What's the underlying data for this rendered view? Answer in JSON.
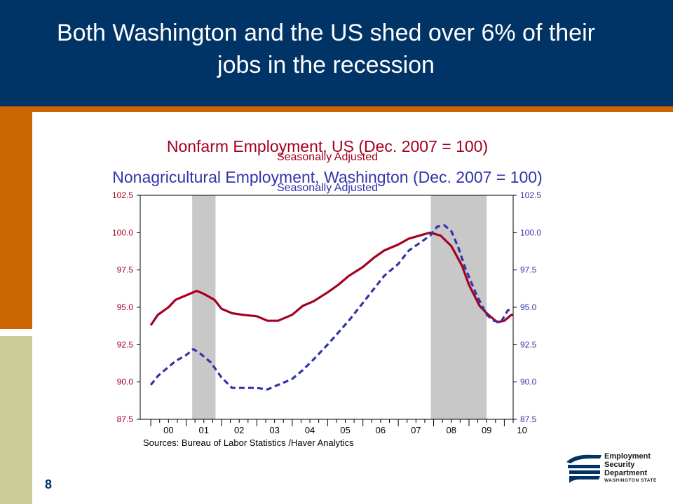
{
  "slide": {
    "title_line1": "Both Washington and the US shed over 6% of their",
    "title_line2": "jobs in the recession",
    "page_number": "8"
  },
  "colors": {
    "header_bg": "#003366",
    "orange": "#cc6600",
    "khaki": "#cccc99",
    "us_series": "#a50021",
    "wa_series": "#3333aa",
    "recession_shade": "#c8c8c8"
  },
  "logo": {
    "line1": "Employment",
    "line2": "Security",
    "line3": "Department",
    "line4": "WASHINGTON STATE"
  },
  "chart_data": {
    "type": "line",
    "title_us": "Nonfarm Employment, US (Dec. 2007 = 100)",
    "subtitle_us": "Seasonally Adjusted",
    "title_wa": "Nonagricultural Employment, Washington (Dec. 2007 = 100)",
    "subtitle_wa": "Seasonally Adjusted",
    "source": "Sources:  Bureau of Labor Statistics /Haver Analytics",
    "x_range": [
      1999.7,
      2010.25
    ],
    "ylim": [
      87.5,
      102.5
    ],
    "y_ticks_left": [
      "102.5",
      "100.0",
      "97.5",
      "95.0",
      "92.5",
      "90.0",
      "87.5"
    ],
    "y_ticks_right": [
      "102.5",
      "100.0",
      "97.5",
      "95.0",
      "92.5",
      "90.0",
      "87.5"
    ],
    "x_tick_labels": [
      "00",
      "01",
      "02",
      "03",
      "04",
      "05",
      "06",
      "07",
      "08",
      "09",
      "10"
    ],
    "recessions": [
      [
        2001.17,
        2001.83
      ],
      [
        2007.92,
        2009.5
      ]
    ],
    "series": [
      {
        "name": "Nonfarm Employment, US",
        "style": "solid",
        "points": [
          [
            2000.0,
            93.8
          ],
          [
            2000.2,
            94.5
          ],
          [
            2000.5,
            95.0
          ],
          [
            2000.7,
            95.5
          ],
          [
            2001.0,
            95.8
          ],
          [
            2001.3,
            96.1
          ],
          [
            2001.5,
            95.9
          ],
          [
            2001.8,
            95.5
          ],
          [
            2002.0,
            94.9
          ],
          [
            2002.3,
            94.6
          ],
          [
            2002.6,
            94.5
          ],
          [
            2003.0,
            94.4
          ],
          [
            2003.3,
            94.1
          ],
          [
            2003.6,
            94.1
          ],
          [
            2004.0,
            94.5
          ],
          [
            2004.3,
            95.1
          ],
          [
            2004.6,
            95.4
          ],
          [
            2005.0,
            96.0
          ],
          [
            2005.3,
            96.5
          ],
          [
            2005.6,
            97.1
          ],
          [
            2006.0,
            97.7
          ],
          [
            2006.3,
            98.3
          ],
          [
            2006.6,
            98.8
          ],
          [
            2007.0,
            99.2
          ],
          [
            2007.3,
            99.6
          ],
          [
            2007.6,
            99.8
          ],
          [
            2007.9,
            100.0
          ],
          [
            2008.2,
            99.8
          ],
          [
            2008.5,
            99.1
          ],
          [
            2008.8,
            97.8
          ],
          [
            2009.0,
            96.5
          ],
          [
            2009.3,
            95.1
          ],
          [
            2009.5,
            94.6
          ],
          [
            2009.8,
            94.0
          ],
          [
            2010.0,
            94.1
          ],
          [
            2010.2,
            94.5
          ],
          [
            2010.25,
            94.5
          ]
        ]
      },
      {
        "name": "Nonagricultural Employment, Washington",
        "style": "dashed",
        "points": [
          [
            2000.0,
            89.8
          ],
          [
            2000.2,
            90.4
          ],
          [
            2000.5,
            91.0
          ],
          [
            2000.7,
            91.4
          ],
          [
            2001.0,
            91.8
          ],
          [
            2001.2,
            92.2
          ],
          [
            2001.4,
            91.9
          ],
          [
            2001.7,
            91.3
          ],
          [
            2002.0,
            90.3
          ],
          [
            2002.3,
            89.6
          ],
          [
            2002.6,
            89.6
          ],
          [
            2003.0,
            89.6
          ],
          [
            2003.3,
            89.5
          ],
          [
            2003.6,
            89.8
          ],
          [
            2004.0,
            90.2
          ],
          [
            2004.3,
            90.8
          ],
          [
            2004.6,
            91.5
          ],
          [
            2005.0,
            92.5
          ],
          [
            2005.3,
            93.3
          ],
          [
            2005.6,
            94.1
          ],
          [
            2006.0,
            95.3
          ],
          [
            2006.3,
            96.2
          ],
          [
            2006.6,
            97.1
          ],
          [
            2007.0,
            97.9
          ],
          [
            2007.3,
            98.8
          ],
          [
            2007.6,
            99.3
          ],
          [
            2007.9,
            99.8
          ],
          [
            2008.1,
            100.4
          ],
          [
            2008.3,
            100.5
          ],
          [
            2008.5,
            100.1
          ],
          [
            2008.7,
            99.0
          ],
          [
            2008.9,
            97.6
          ],
          [
            2009.2,
            95.9
          ],
          [
            2009.5,
            94.5
          ],
          [
            2009.7,
            94.1
          ],
          [
            2009.9,
            94.0
          ],
          [
            2010.1,
            94.8
          ],
          [
            2010.25,
            94.9
          ]
        ]
      }
    ]
  }
}
